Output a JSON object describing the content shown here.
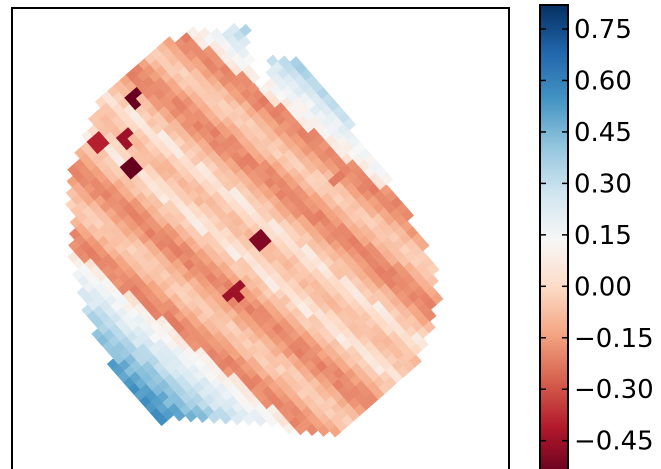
{
  "chart_data": {
    "type": "heatmap",
    "title": "",
    "xlabel": "",
    "ylabel": "",
    "axis_ticks_visible": false,
    "grid": false,
    "colormap": "RdBu",
    "diverging_center": 0.0,
    "value_range": [
      -0.55,
      0.82
    ],
    "grid_size": [
      50,
      50
    ],
    "structure": "irregular map of values in a tilted pixel grid; a pale-to-red central band running diagonally from upper-left to lower-right; blue regions toward the left and upper-right edges; a few dark red pixels scattered through the band",
    "colorbar": {
      "ticks": [
        0.75,
        0.6,
        0.45,
        0.3,
        0.15,
        0.0,
        -0.15,
        -0.3,
        -0.45
      ],
      "tick_labels": [
        "0.75",
        "0.60",
        "0.45",
        "0.30",
        "0.15",
        "0.00",
        "−0.15",
        "−0.30",
        "−0.45"
      ]
    },
    "highlights": [
      {
        "description": "dark red pixels near top-left edge",
        "value": -0.5
      },
      {
        "description": "dark red pixels near center",
        "value": -0.45
      },
      {
        "description": "dark red pixel near bottom-right",
        "value": -0.5
      },
      {
        "description": "orange pixel inside right blue band",
        "value": -0.2
      }
    ]
  }
}
